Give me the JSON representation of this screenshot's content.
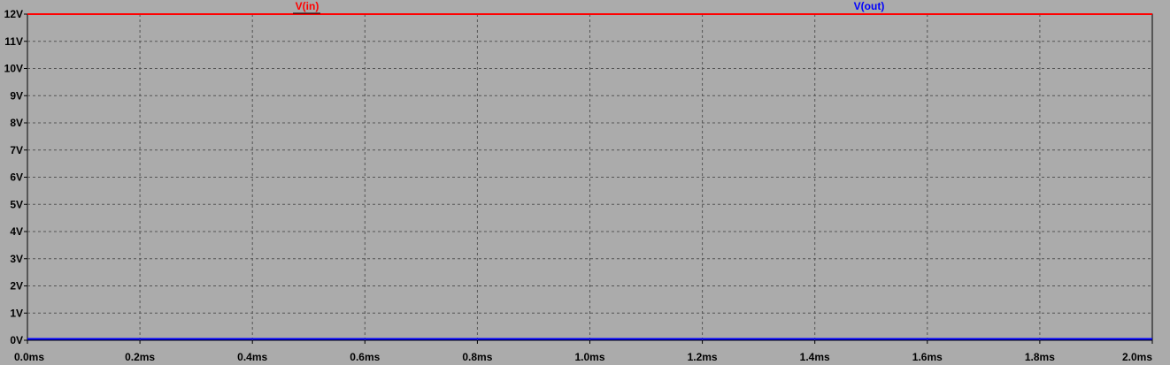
{
  "chart_data": {
    "type": "line",
    "title": "",
    "xlabel": "",
    "ylabel": "",
    "xlim": [
      0,
      2.0
    ],
    "ylim": [
      0,
      12
    ],
    "x_ticks": [
      {
        "value": 0.0,
        "label": "0.0ms"
      },
      {
        "value": 0.2,
        "label": "0.2ms"
      },
      {
        "value": 0.4,
        "label": "0.4ms"
      },
      {
        "value": 0.6,
        "label": "0.6ms"
      },
      {
        "value": 0.8,
        "label": "0.8ms"
      },
      {
        "value": 1.0,
        "label": "1.0ms"
      },
      {
        "value": 1.2,
        "label": "1.2ms"
      },
      {
        "value": 1.4,
        "label": "1.4ms"
      },
      {
        "value": 1.6,
        "label": "1.6ms"
      },
      {
        "value": 1.8,
        "label": "1.8ms"
      },
      {
        "value": 2.0,
        "label": "2.0ms"
      }
    ],
    "y_ticks": [
      {
        "value": 0,
        "label": "0V"
      },
      {
        "value": 1,
        "label": "1V"
      },
      {
        "value": 2,
        "label": "2V"
      },
      {
        "value": 3,
        "label": "3V"
      },
      {
        "value": 4,
        "label": "4V"
      },
      {
        "value": 5,
        "label": "5V"
      },
      {
        "value": 6,
        "label": "6V"
      },
      {
        "value": 7,
        "label": "7V"
      },
      {
        "value": 8,
        "label": "8V"
      },
      {
        "value": 9,
        "label": "9V"
      },
      {
        "value": 10,
        "label": "10V"
      },
      {
        "value": 11,
        "label": "11V"
      },
      {
        "value": 12,
        "label": "12V"
      }
    ],
    "grid": true,
    "legend": "top",
    "series": [
      {
        "name": "V(in)",
        "color": "#ff0000",
        "x": [
          0.0,
          2.0
        ],
        "y": [
          12,
          12
        ]
      },
      {
        "name": "V(out)",
        "color": "#0000ff",
        "x": [
          0.0,
          2.0
        ],
        "y": [
          0.05,
          0.05
        ]
      }
    ]
  }
}
